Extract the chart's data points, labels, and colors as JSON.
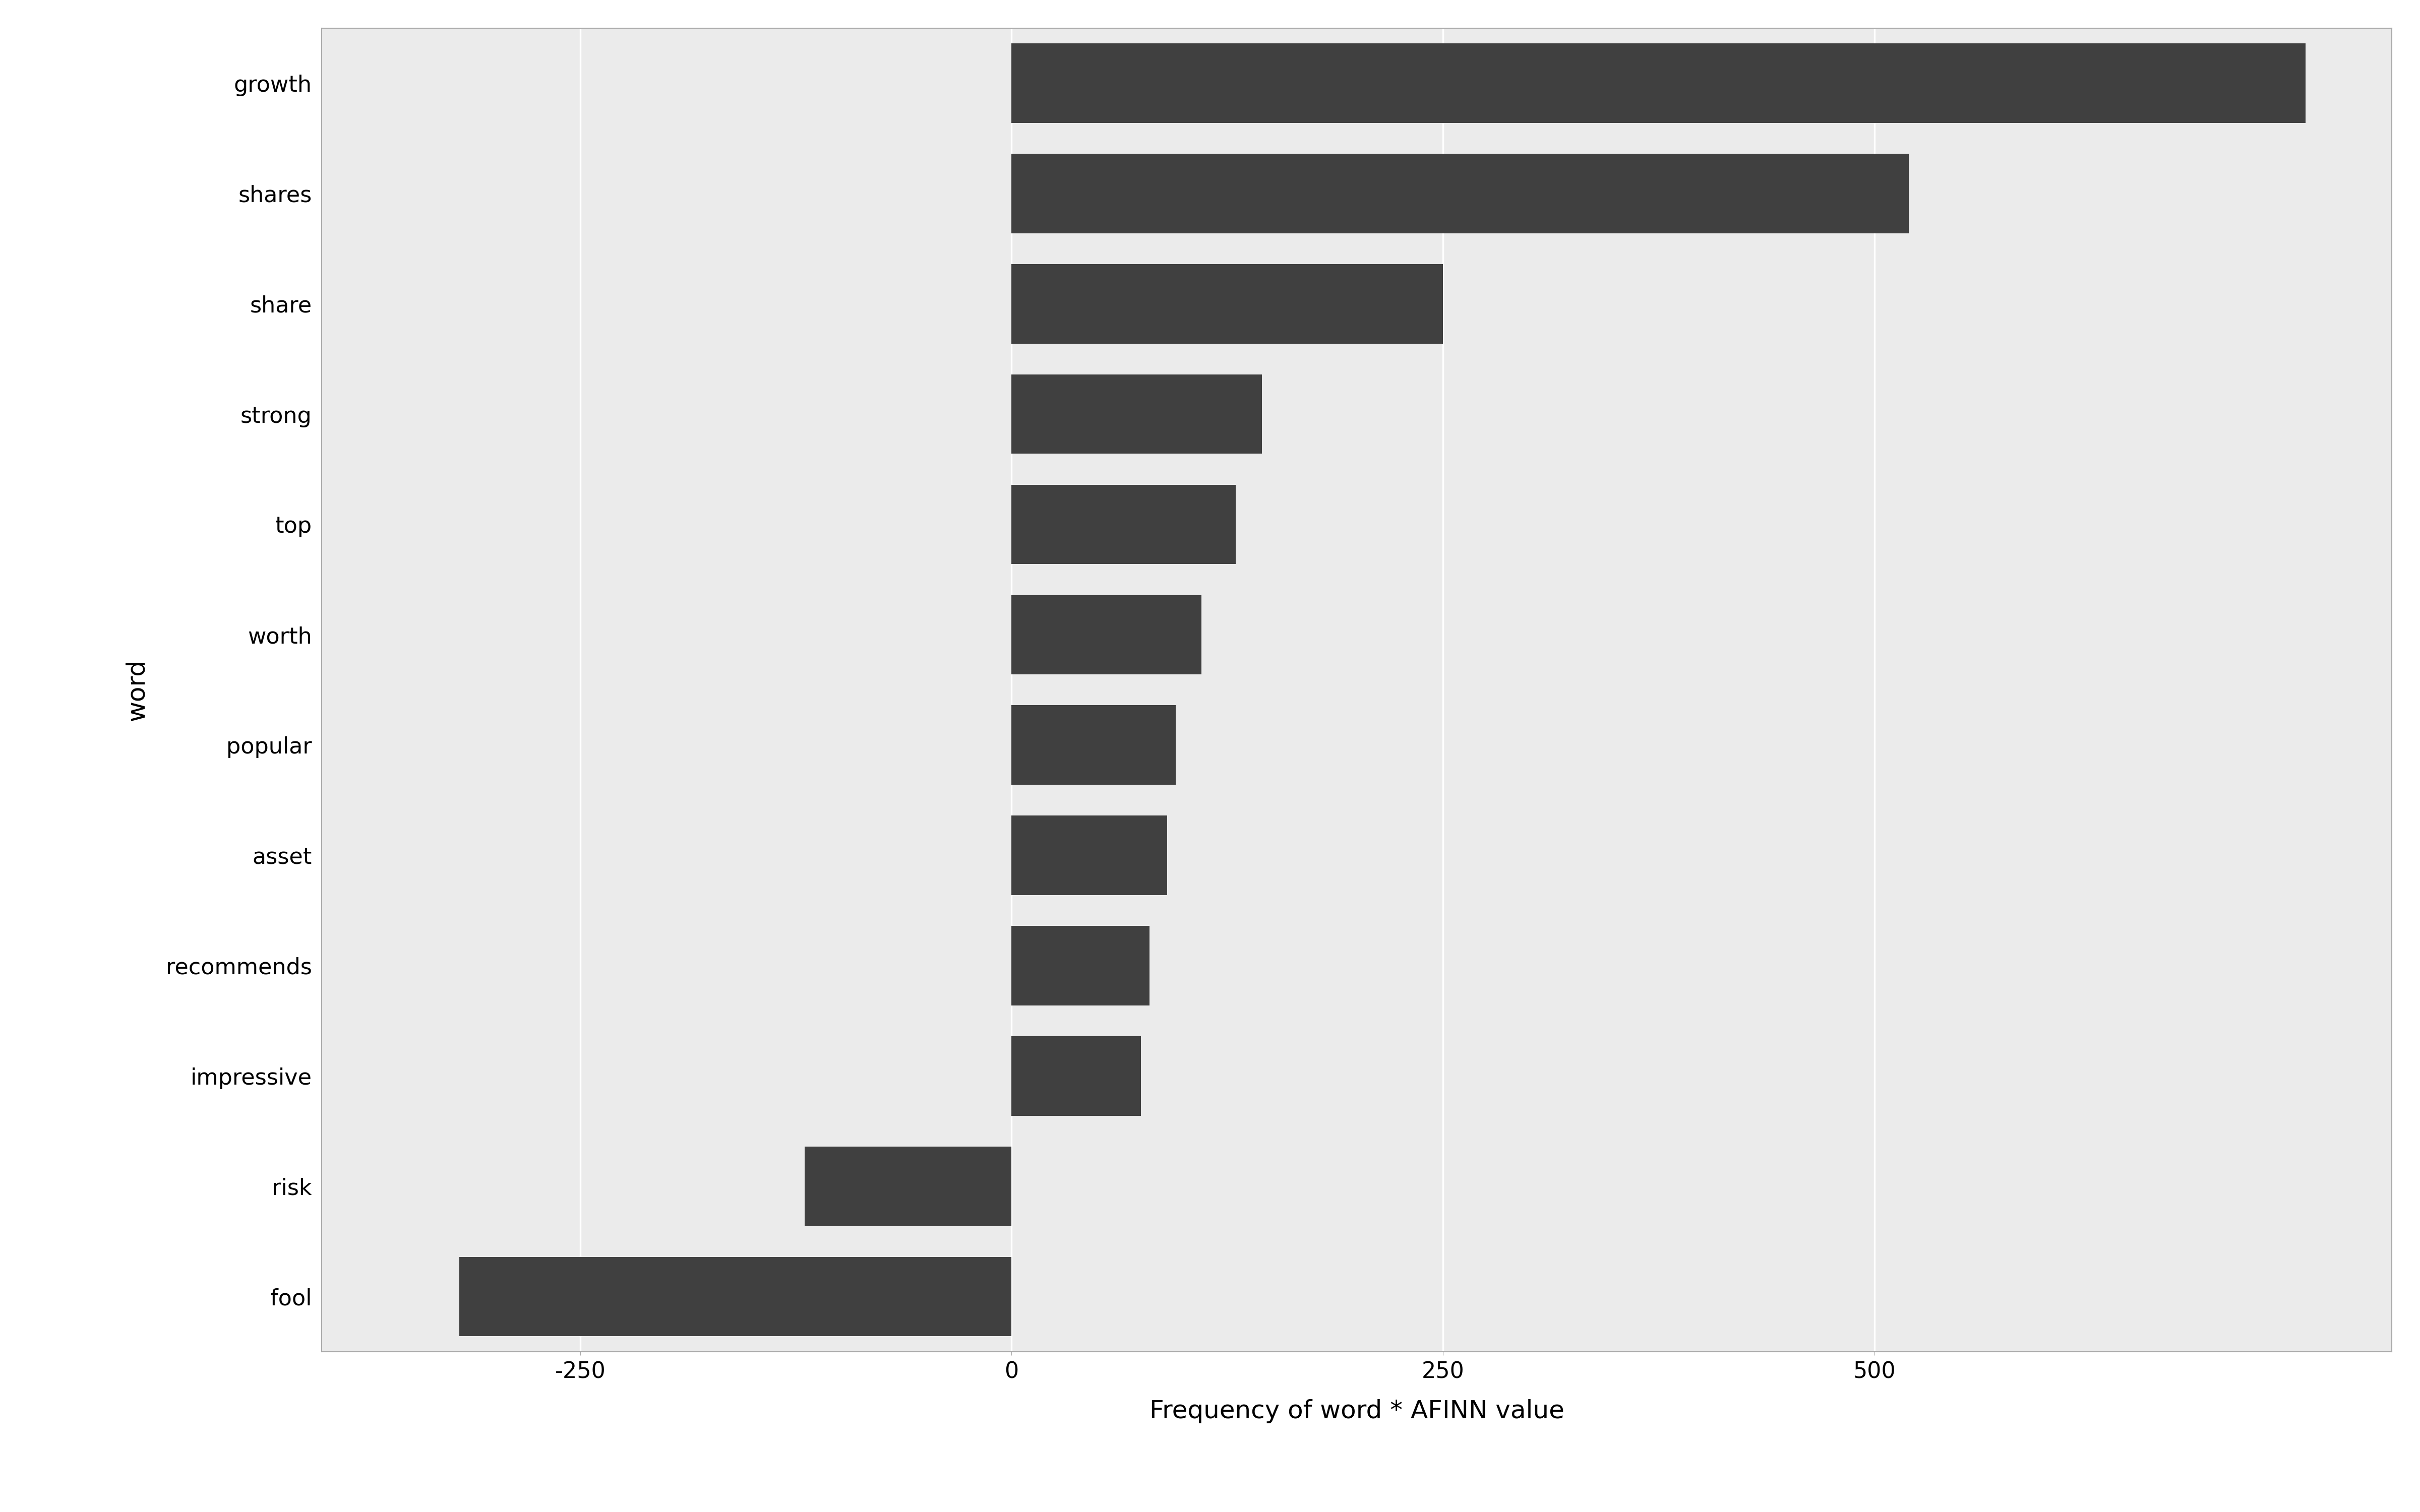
{
  "words": [
    "fool",
    "risk",
    "impressive",
    "recommends",
    "asset",
    "popular",
    "worth",
    "top",
    "strong",
    "share",
    "shares",
    "growth"
  ],
  "values": [
    -320,
    -120,
    75,
    80,
    90,
    95,
    110,
    130,
    145,
    250,
    520,
    750
  ],
  "bar_color": "#404040",
  "xlabel": "Frequency of word * AFINN value",
  "ylabel": "word",
  "xlim": [
    -400,
    800
  ],
  "xticks": [
    -250,
    0,
    250,
    500
  ],
  "background_color": "#ebebeb",
  "panel_background": "#ebebeb",
  "grid_color": "#ffffff",
  "bar_height": 0.72,
  "label_fontsize": 36,
  "tick_fontsize": 32,
  "ylabel_fontsize": 36
}
